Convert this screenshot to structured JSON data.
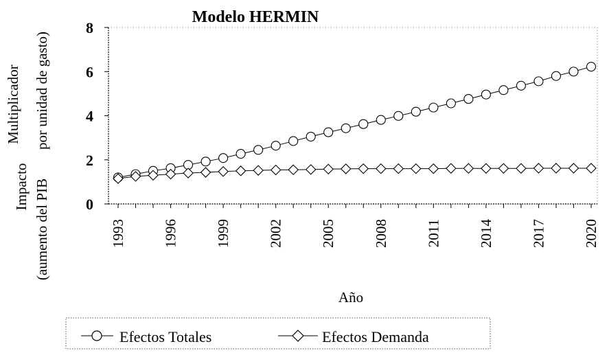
{
  "chart_data": {
    "type": "line",
    "title": "Modelo HERMIN",
    "xlabel": "Año",
    "ylabel_lines": [
      "Impacto",
      "(aumento del PIB",
      "Multiplicador",
      "por unidad de gasto)"
    ],
    "x": [
      1993,
      1994,
      1995,
      1996,
      1997,
      1998,
      1999,
      2000,
      2001,
      2002,
      2003,
      2004,
      2005,
      2006,
      2007,
      2008,
      2009,
      2010,
      2011,
      2012,
      2013,
      2014,
      2015,
      2016,
      2017,
      2018,
      2019,
      2020
    ],
    "xticks": [
      1993,
      1996,
      1999,
      2002,
      2005,
      2008,
      2011,
      2014,
      2017,
      2020
    ],
    "yticks": [
      0,
      2,
      4,
      6,
      8
    ],
    "ylim": [
      0,
      8
    ],
    "series": [
      {
        "name": "Efectos Totales",
        "marker": "circle",
        "values": [
          1.2,
          1.35,
          1.5,
          1.62,
          1.77,
          1.92,
          2.08,
          2.27,
          2.45,
          2.64,
          2.85,
          3.05,
          3.25,
          3.43,
          3.62,
          3.81,
          3.99,
          4.18,
          4.37,
          4.56,
          4.76,
          4.96,
          5.16,
          5.36,
          5.56,
          5.8,
          6.0,
          6.22
        ]
      },
      {
        "name": "Efectos Demanda",
        "marker": "diamond",
        "values": [
          1.15,
          1.25,
          1.3,
          1.35,
          1.4,
          1.43,
          1.47,
          1.5,
          1.52,
          1.54,
          1.55,
          1.56,
          1.58,
          1.59,
          1.6,
          1.6,
          1.6,
          1.6,
          1.6,
          1.61,
          1.61,
          1.61,
          1.61,
          1.61,
          1.62,
          1.62,
          1.62,
          1.62
        ]
      }
    ]
  }
}
